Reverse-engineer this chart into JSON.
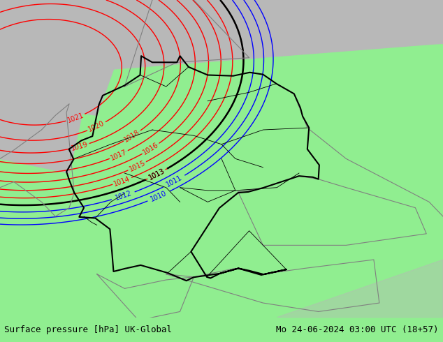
{
  "title_left": "Surface pressure [hPa] UK-Global",
  "title_right": "Mo 24-06-2024 03:00 UTC (18+57)",
  "bg_color_land": "#90EE90",
  "bg_color_gray": "#B8B8B8",
  "bg_color_white": "#FFFFFF",
  "contour_color_red": "#FF0000",
  "contour_color_black": "#000000",
  "contour_color_blue": "#0000FF",
  "contour_color_gray": "#909090",
  "figsize": [
    6.34,
    4.9
  ],
  "dpi": 100,
  "xlim": [
    3.5,
    19.5
  ],
  "ylim": [
    46.0,
    57.0
  ],
  "levels_red": [
    1013,
    1014,
    1015,
    1016,
    1017,
    1018,
    1019,
    1020,
    1021
  ],
  "levels_black": [
    1013
  ],
  "levels_blue": [
    1010,
    1011,
    1012
  ]
}
